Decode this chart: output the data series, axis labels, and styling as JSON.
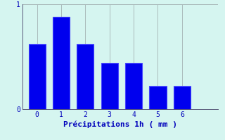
{
  "categories": [
    0,
    1,
    2,
    3,
    4,
    5,
    6
  ],
  "values": [
    0.62,
    0.88,
    0.62,
    0.44,
    0.44,
    0.22,
    0.22
  ],
  "bar_color": "#0000ee",
  "bar_edge_color": "#4444ff",
  "background_color": "#d5f5f0",
  "grid_color": "#aabbbb",
  "xlabel": "Précipitations 1h ( mm )",
  "xlabel_color": "#0000bb",
  "tick_color": "#0000bb",
  "axis_color": "#555577",
  "ylim": [
    0,
    1.0
  ],
  "xlim": [
    -0.6,
    7.5
  ],
  "yticks": [
    0,
    1
  ],
  "xticks": [
    0,
    1,
    2,
    3,
    4,
    5,
    6
  ],
  "bar_width": 0.7
}
